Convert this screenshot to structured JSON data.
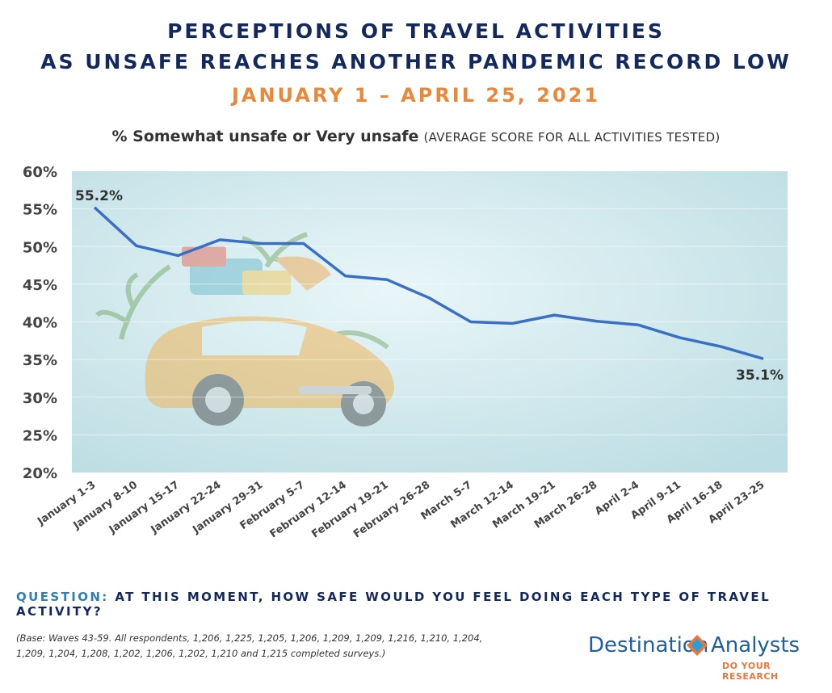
{
  "header": {
    "title_line1": "PERCEPTIONS OF TRAVEL ACTIVITIES",
    "title_line2": "AS UNSAFE REACHES ANOTHER PANDEMIC RECORD LOW",
    "date_range": "JANUARY 1 – APRIL 25, 2021",
    "subtitle_bold": "% Somewhat unsafe or Very unsafe",
    "subtitle_note": "(AVERAGE SCORE FOR ALL ACTIVITIES TESTED)"
  },
  "chart_data": {
    "type": "line",
    "categories": [
      "January 1-3",
      "January 8-10",
      "January 15-17",
      "January 22-24",
      "January 29-31",
      "February 5-7",
      "February 12-14",
      "February 19-21",
      "February 26-28",
      "March 5-7",
      "March 12-14",
      "March 19-21",
      "March 26-28",
      "April 2-4",
      "April 9-11",
      "April 16-18",
      "April 23-25"
    ],
    "series": [
      {
        "values": [
          55.2,
          50.1,
          48.8,
          50.9,
          50.4,
          50.4,
          46.1,
          45.6,
          43.2,
          40.0,
          39.8,
          40.9,
          40.1,
          39.6,
          37.9,
          36.7,
          35.1
        ]
      }
    ],
    "yticks": [
      "60%",
      "55%",
      "50%",
      "45%",
      "40%",
      "35%",
      "30%",
      "25%",
      "20%"
    ],
    "ylim": [
      20,
      60
    ],
    "data_labels": [
      {
        "index": 0,
        "text": "55.2%"
      },
      {
        "index": 16,
        "text": "35.1%"
      }
    ],
    "line_color": "#3a6fc4",
    "grid": true
  },
  "footer": {
    "question_label": "QUESTION:",
    "question_text": "AT THIS MOMENT, HOW SAFE WOULD YOU FEEL DOING EACH TYPE OF TRAVEL ACTIVITY?",
    "base_line1": "(Base: Waves 43-59. All respondents, 1,206, 1,225, 1,205, 1,206, 1,209, 1,209, 1,216, 1,210, 1,204,",
    "base_line2": "1,209, 1,204, 1,208, 1,202, 1,206, 1,202, 1,210 and 1,215 completed surveys.)"
  },
  "logo": {
    "word1": "Destination",
    "word2": "Analysts",
    "tagline": "DO YOUR RESEARCH",
    "icon": "diamond-logo-icon"
  }
}
